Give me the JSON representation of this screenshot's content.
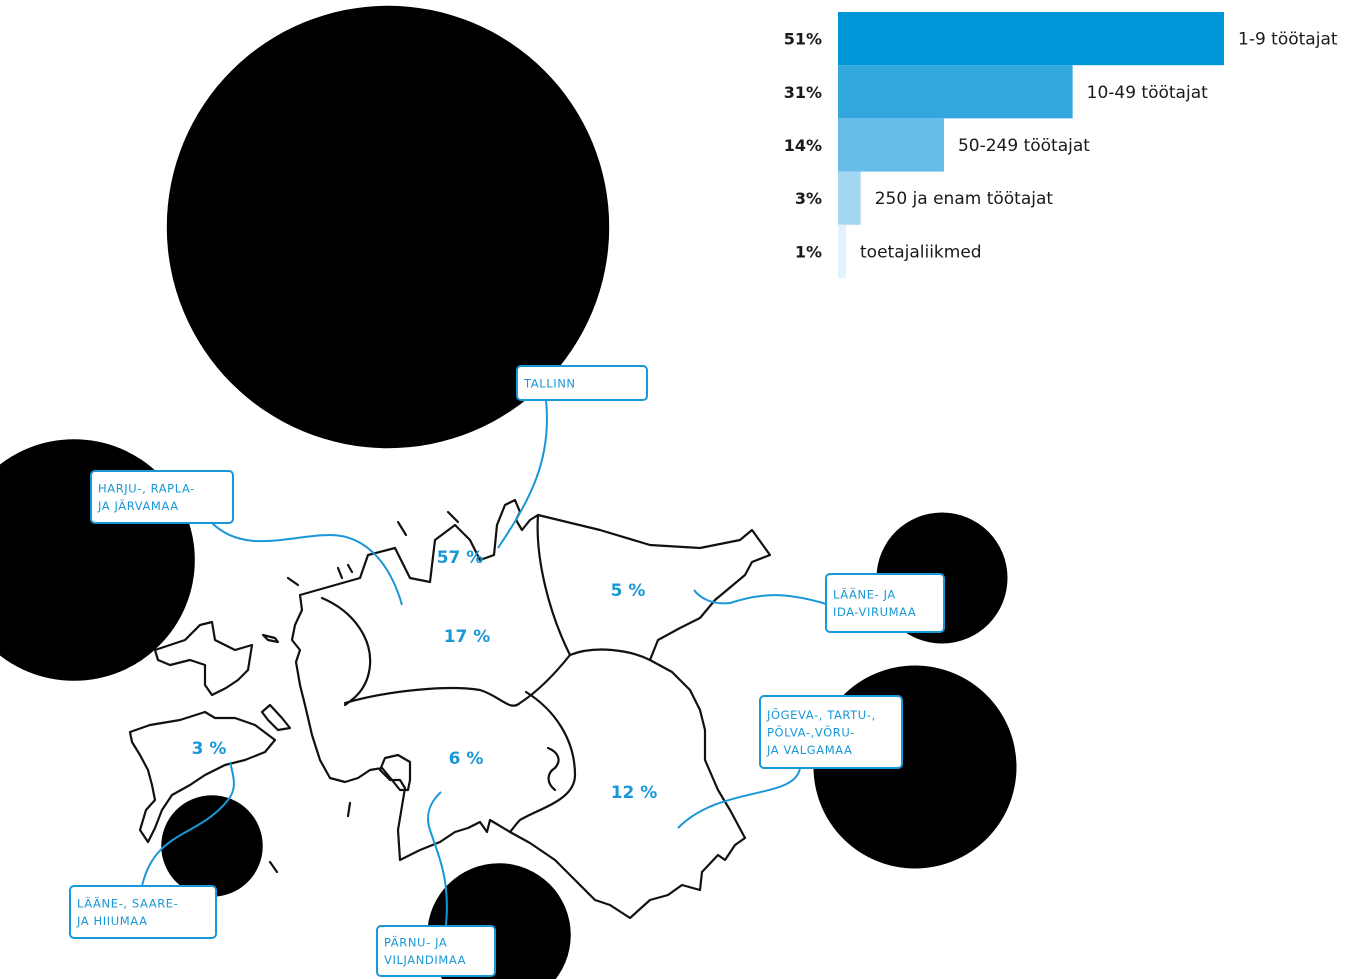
{
  "colors": {
    "accent": "#1a97d6",
    "bar_shades": [
      "#0096da",
      "#33a8df",
      "#66bde8",
      "#a3d7f1",
      "#e3f3fb"
    ],
    "bubble": "#000000",
    "outline": "#111111"
  },
  "chart_data": [
    {
      "type": "bar",
      "orientation": "horizontal",
      "categories": [
        "1-9 töötajat",
        "10-49 töötajat",
        "50-249 töötajat",
        "250 ja enam töötajat",
        "toetajaliikmed"
      ],
      "values": [
        51,
        31,
        14,
        3,
        1
      ],
      "value_labels": [
        "51%",
        "31%",
        "14%",
        "3%",
        "1%"
      ],
      "unit": "%",
      "xlim": [
        0,
        51
      ]
    },
    {
      "type": "map",
      "bubbles_scaled_to": "share",
      "regions": [
        {
          "key": "tallinn",
          "value": 57,
          "value_label": "57 %",
          "callout": [
            "TALLINN"
          ]
        },
        {
          "key": "harju",
          "value": 17,
          "value_label": "17 %",
          "callout": [
            "HARJU-, RAPLA-",
            "JA JÄRVAMAA"
          ]
        },
        {
          "key": "viru",
          "value": 5,
          "value_label": "5 %",
          "callout": [
            "LÄÄNE- JA",
            "IDA-VIRUMAA"
          ]
        },
        {
          "key": "tartu",
          "value": 12,
          "value_label": "12 %",
          "callout": [
            "JÕGEVA-, TARTU-,",
            "PÕLVA-,VÕRU-",
            "JA VALGAMAA"
          ]
        },
        {
          "key": "parnu",
          "value": 6,
          "value_label": "6 %",
          "callout": [
            "PÄRNU- JA",
            "VILJANDIMAA"
          ]
        },
        {
          "key": "saare",
          "value": 3,
          "value_label": "3 %",
          "callout": [
            "LÄÄNE-, SAARE-",
            "JA HIIUMAA"
          ]
        }
      ]
    }
  ]
}
